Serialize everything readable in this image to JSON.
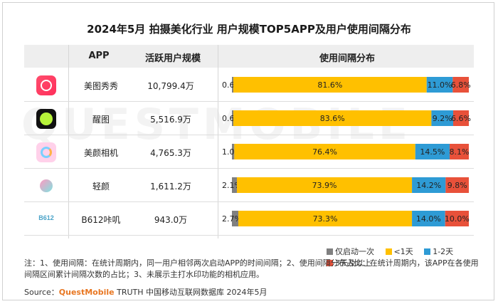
{
  "title": "2024年5月 拍摄美化行业 用户规模TOP5APP及用户使用间隔分布",
  "headers": {
    "app": "APP",
    "users": "活跃用户规模",
    "dist": "使用间隔分布"
  },
  "watermark": "QUESTMOBILE",
  "colors": {
    "lt1": "#808080",
    "lt7": "#FFC000",
    "d12": "#2E9BD5",
    "d3p": "#E8513A"
  },
  "icons": [
    "meitu-xiuxiu-app-icon",
    "xingtu-app-icon",
    "meiyan-camera-app-icon",
    "qingyan-app-icon",
    "b612-app-icon"
  ],
  "chart_data": {
    "type": "bar",
    "stacked": true,
    "orientation": "horizontal",
    "categories": [
      "美图秀秀",
      "醒图",
      "美颜相机",
      "轻颜",
      "B612咔叽"
    ],
    "active_users": [
      "10,799.4万",
      "5,516.9万",
      "4,765.3万",
      "1,611.2万",
      "943.0万"
    ],
    "series": [
      {
        "name": "仅启动一次",
        "values": [
          0.6,
          0.6,
          1.0,
          2.1,
          2.7
        ],
        "labels": [
          "0.6%",
          "0.6%",
          "1.0%",
          "2.1%",
          "2.7%"
        ]
      },
      {
        "name": "<1天",
        "values": [
          81.6,
          83.6,
          76.4,
          73.9,
          73.3
        ],
        "labels": [
          "81.6%",
          "83.6%",
          "76.4%",
          "73.9%",
          "73.3%"
        ]
      },
      {
        "name": "1-2天",
        "values": [
          11.0,
          9.2,
          14.5,
          14.2,
          14.0
        ],
        "labels": [
          "11.0%",
          "9.2%",
          "14.5%",
          "14.2%",
          "14.0%"
        ]
      },
      {
        "name": "3天及以上",
        "values": [
          6.8,
          6.6,
          8.1,
          9.8,
          10.0
        ],
        "labels": [
          "6.8%",
          "6.6%",
          "8.1%",
          "9.8%",
          "10.0%"
        ]
      }
    ],
    "legend_position": "bottom-right"
  },
  "note": "注：1、使用间隔：在统计周期内，同一用户相邻两次启动APP的时间间隔；2、使用间隔分布占比：在统计周期内，该APP在各使用间隔区间累计间隔次数的占比；3、未展示主打水印功能的相机应用。",
  "source": {
    "prefix": "Source：",
    "brand": "QuestMobile",
    "text": " TRUTH 中国移动互联网数据库 2024年5月"
  }
}
